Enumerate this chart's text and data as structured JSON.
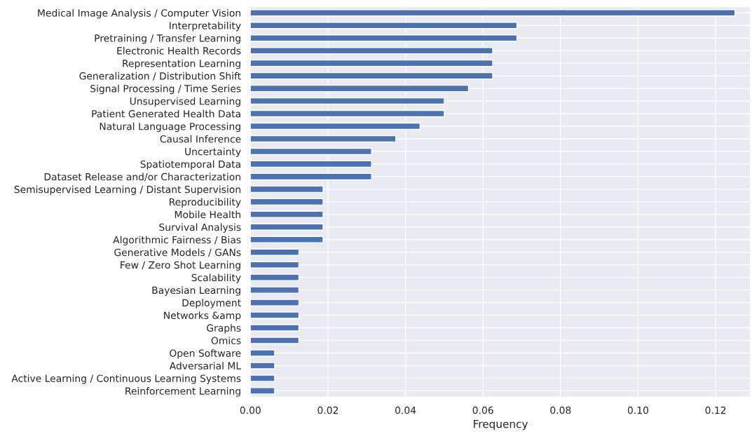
{
  "chart_data": {
    "type": "bar",
    "orientation": "horizontal",
    "xlabel": "Frequency",
    "categories": [
      "Medical Image Analysis / Computer Vision",
      "Interpretability",
      "Pretraining / Transfer Learning",
      "Electronic Health Records",
      "Representation Learning",
      "Generalization / Distribution Shift",
      "Signal Processing / Time Series",
      "Unsupervised Learning",
      "Patient Generated Health Data",
      "Natural Language Processing",
      "Causal Inference",
      "Uncertainty",
      "Spatiotemporal Data",
      "Dataset Release and/or Characterization",
      "Semisupervised Learning / Distant Supervision",
      "Reproducibility",
      "Mobile Health",
      "Survival Analysis",
      "Algorithmic Fairness / Bias",
      "Generative Models / GANs",
      "Few / Zero Shot Learning",
      "Scalability",
      "Bayesian Learning",
      "Deployment",
      "Networks &amp",
      "Graphs",
      "Omics",
      "Open Software",
      "Adversarial ML",
      "Active Learning / Continuous Learning Systems",
      "Reinforcement Learning"
    ],
    "values": [
      0.125,
      0.06875,
      0.06875,
      0.0625,
      0.0625,
      0.0625,
      0.05625,
      0.05,
      0.05,
      0.04375,
      0.0375,
      0.03125,
      0.03125,
      0.03125,
      0.01875,
      0.01875,
      0.01875,
      0.01875,
      0.01875,
      0.0125,
      0.0125,
      0.0125,
      0.0125,
      0.0125,
      0.0125,
      0.0125,
      0.0125,
      0.00625,
      0.00625,
      0.00625,
      0.00625
    ],
    "color": "#4c72b0",
    "xlim": [
      0,
      0.129
    ],
    "xticks": [
      {
        "value": 0,
        "label": "0.00"
      },
      {
        "value": 0.02,
        "label": "0.02"
      },
      {
        "value": 0.04,
        "label": "0.04"
      },
      {
        "value": 0.06,
        "label": "0.06"
      },
      {
        "value": 0.08,
        "label": "0.08"
      },
      {
        "value": 0.1,
        "label": "0.10"
      },
      {
        "value": 0.12,
        "label": "0.12"
      }
    ],
    "grid": true
  }
}
